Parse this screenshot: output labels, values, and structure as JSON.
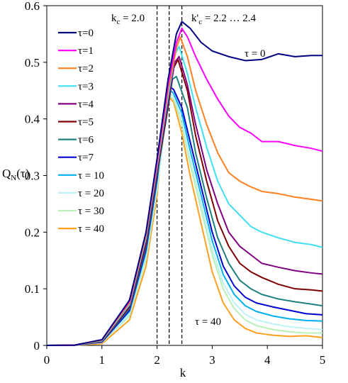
{
  "chart_data": {
    "type": "line",
    "xlabel": "k",
    "ylabel": "Q_N(τ)",
    "xlim": [
      0,
      5
    ],
    "ylim": [
      0,
      0.6
    ],
    "x_ticks": [
      "0",
      "1",
      "2",
      "3",
      "4",
      "5"
    ],
    "y_ticks": [
      "0",
      "0.1",
      "0.2",
      "0.3",
      "0.4",
      "0.5",
      "0.6"
    ],
    "grid": false,
    "legend_position": "upper-left",
    "vlines": [
      2.0,
      2.22,
      2.45
    ],
    "annotations": {
      "kc": "k",
      "kc_sub": "c",
      "kc_value": " = 2.0",
      "kcp": "k'",
      "kcp_sub": "c",
      "kcp_value": " = 2.2 … 2.4",
      "tau0": "τ = 0",
      "tau40": "τ = 40"
    },
    "series": [
      {
        "name": "τ=0",
        "color": "#000080",
        "points": [
          [
            0,
            0
          ],
          [
            0.5,
            0.0005
          ],
          [
            1.0,
            0.01
          ],
          [
            1.5,
            0.08
          ],
          [
            1.8,
            0.2
          ],
          [
            2.0,
            0.33
          ],
          [
            2.2,
            0.47
          ],
          [
            2.35,
            0.55
          ],
          [
            2.45,
            0.572
          ],
          [
            2.6,
            0.56
          ],
          [
            2.8,
            0.535
          ],
          [
            3.0,
            0.52
          ],
          [
            3.3,
            0.51
          ],
          [
            3.6,
            0.503
          ],
          [
            3.9,
            0.505
          ],
          [
            4.2,
            0.515
          ],
          [
            4.5,
            0.51
          ],
          [
            4.8,
            0.512
          ],
          [
            5.0,
            0.512
          ]
        ]
      },
      {
        "name": "τ=1",
        "color": "#FF00FF",
        "points": [
          [
            0,
            0
          ],
          [
            0.5,
            0.0005
          ],
          [
            1.0,
            0.01
          ],
          [
            1.5,
            0.078
          ],
          [
            1.8,
            0.2
          ],
          [
            2.0,
            0.325
          ],
          [
            2.2,
            0.46
          ],
          [
            2.35,
            0.535
          ],
          [
            2.45,
            0.56
          ],
          [
            2.55,
            0.545
          ],
          [
            2.7,
            0.51
          ],
          [
            2.9,
            0.47
          ],
          [
            3.1,
            0.435
          ],
          [
            3.3,
            0.405
          ],
          [
            3.5,
            0.385
          ],
          [
            3.7,
            0.375
          ],
          [
            3.9,
            0.36
          ],
          [
            4.2,
            0.36
          ],
          [
            4.5,
            0.353
          ],
          [
            4.8,
            0.348
          ],
          [
            5.0,
            0.343
          ]
        ]
      },
      {
        "name": "τ=2",
        "color": "#FF8020",
        "points": [
          [
            0,
            0
          ],
          [
            0.5,
            0.0005
          ],
          [
            1.0,
            0.009
          ],
          [
            1.5,
            0.075
          ],
          [
            1.8,
            0.195
          ],
          [
            2.0,
            0.32
          ],
          [
            2.2,
            0.45
          ],
          [
            2.35,
            0.525
          ],
          [
            2.42,
            0.545
          ],
          [
            2.55,
            0.51
          ],
          [
            2.7,
            0.45
          ],
          [
            2.9,
            0.39
          ],
          [
            3.1,
            0.34
          ],
          [
            3.3,
            0.305
          ],
          [
            3.5,
            0.29
          ],
          [
            3.7,
            0.28
          ],
          [
            3.9,
            0.272
          ],
          [
            4.2,
            0.268
          ],
          [
            4.5,
            0.262
          ],
          [
            4.8,
            0.258
          ],
          [
            5.0,
            0.255
          ]
        ]
      },
      {
        "name": "τ=3",
        "color": "#40E0F0",
        "points": [
          [
            0,
            0
          ],
          [
            0.5,
            0.0004
          ],
          [
            1.0,
            0.008
          ],
          [
            1.5,
            0.072
          ],
          [
            1.8,
            0.19
          ],
          [
            2.0,
            0.315
          ],
          [
            2.2,
            0.44
          ],
          [
            2.33,
            0.515
          ],
          [
            2.4,
            0.528
          ],
          [
            2.55,
            0.48
          ],
          [
            2.7,
            0.42
          ],
          [
            2.9,
            0.35
          ],
          [
            3.1,
            0.29
          ],
          [
            3.3,
            0.25
          ],
          [
            3.5,
            0.23
          ],
          [
            3.7,
            0.21
          ],
          [
            3.9,
            0.2
          ],
          [
            4.2,
            0.19
          ],
          [
            4.5,
            0.182
          ],
          [
            4.8,
            0.178
          ],
          [
            5.0,
            0.173
          ]
        ]
      },
      {
        "name": "τ=4",
        "color": "#800080",
        "points": [
          [
            0,
            0
          ],
          [
            0.5,
            0.0004
          ],
          [
            1.0,
            0.008
          ],
          [
            1.5,
            0.07
          ],
          [
            1.8,
            0.185
          ],
          [
            2.0,
            0.31
          ],
          [
            2.2,
            0.43
          ],
          [
            2.32,
            0.5
          ],
          [
            2.4,
            0.51
          ],
          [
            2.55,
            0.46
          ],
          [
            2.7,
            0.39
          ],
          [
            2.9,
            0.31
          ],
          [
            3.1,
            0.25
          ],
          [
            3.3,
            0.2
          ],
          [
            3.5,
            0.175
          ],
          [
            3.7,
            0.16
          ],
          [
            3.9,
            0.145
          ],
          [
            4.2,
            0.138
          ],
          [
            4.5,
            0.132
          ],
          [
            4.8,
            0.128
          ],
          [
            5.0,
            0.126
          ]
        ]
      },
      {
        "name": "τ=5",
        "color": "#800000",
        "points": [
          [
            0,
            0
          ],
          [
            0.5,
            0.0004
          ],
          [
            1.0,
            0.007
          ],
          [
            1.5,
            0.068
          ],
          [
            1.8,
            0.18
          ],
          [
            2.0,
            0.305
          ],
          [
            2.2,
            0.425
          ],
          [
            2.3,
            0.49
          ],
          [
            2.38,
            0.505
          ],
          [
            2.55,
            0.45
          ],
          [
            2.7,
            0.37
          ],
          [
            2.9,
            0.29
          ],
          [
            3.1,
            0.22
          ],
          [
            3.3,
            0.175
          ],
          [
            3.5,
            0.145
          ],
          [
            3.7,
            0.13
          ],
          [
            3.9,
            0.12
          ],
          [
            4.2,
            0.108
          ],
          [
            4.5,
            0.1
          ],
          [
            4.8,
            0.098
          ],
          [
            5.0,
            0.096
          ]
        ]
      },
      {
        "name": "τ=6",
        "color": "#1F8080",
        "points": [
          [
            0,
            0
          ],
          [
            0.5,
            0.0003
          ],
          [
            1.0,
            0.007
          ],
          [
            1.5,
            0.065
          ],
          [
            1.8,
            0.175
          ],
          [
            2.0,
            0.3
          ],
          [
            2.2,
            0.42
          ],
          [
            2.28,
            0.47
          ],
          [
            2.35,
            0.475
          ],
          [
            2.55,
            0.42
          ],
          [
            2.7,
            0.34
          ],
          [
            2.9,
            0.26
          ],
          [
            3.1,
            0.19
          ],
          [
            3.3,
            0.145
          ],
          [
            3.5,
            0.115
          ],
          [
            3.7,
            0.1
          ],
          [
            3.9,
            0.09
          ],
          [
            4.2,
            0.082
          ],
          [
            4.5,
            0.077
          ],
          [
            4.8,
            0.073
          ],
          [
            5.0,
            0.07
          ]
        ]
      },
      {
        "name": "τ=7",
        "color": "#0000D0",
        "points": [
          [
            0,
            0
          ],
          [
            0.5,
            0.0003
          ],
          [
            1.0,
            0.006
          ],
          [
            1.5,
            0.062
          ],
          [
            1.8,
            0.17
          ],
          [
            2.0,
            0.295
          ],
          [
            2.15,
            0.42
          ],
          [
            2.22,
            0.458
          ],
          [
            2.3,
            0.452
          ],
          [
            2.45,
            0.42
          ],
          [
            2.6,
            0.36
          ],
          [
            2.8,
            0.28
          ],
          [
            3.0,
            0.2
          ],
          [
            3.2,
            0.14
          ],
          [
            3.4,
            0.105
          ],
          [
            3.6,
            0.085
          ],
          [
            3.8,
            0.075
          ],
          [
            4.1,
            0.068
          ],
          [
            4.4,
            0.062
          ],
          [
            4.7,
            0.056
          ],
          [
            5.0,
            0.054
          ]
        ]
      },
      {
        "name": "τ = 10",
        "color": "#00B0F0",
        "points": [
          [
            0,
            0
          ],
          [
            0.5,
            0.0003
          ],
          [
            1.0,
            0.006
          ],
          [
            1.5,
            0.06
          ],
          [
            1.8,
            0.165
          ],
          [
            2.0,
            0.29
          ],
          [
            2.15,
            0.41
          ],
          [
            2.23,
            0.452
          ],
          [
            2.3,
            0.445
          ],
          [
            2.45,
            0.41
          ],
          [
            2.6,
            0.345
          ],
          [
            2.8,
            0.265
          ],
          [
            3.0,
            0.185
          ],
          [
            3.2,
            0.125
          ],
          [
            3.4,
            0.09
          ],
          [
            3.6,
            0.07
          ],
          [
            3.8,
            0.06
          ],
          [
            4.1,
            0.052
          ],
          [
            4.4,
            0.047
          ],
          [
            4.7,
            0.044
          ],
          [
            5.0,
            0.043
          ]
        ]
      },
      {
        "name": "τ = 20",
        "color": "#C0F0F8",
        "points": [
          [
            0,
            0
          ],
          [
            0.5,
            0.0002
          ],
          [
            1.0,
            0.005
          ],
          [
            1.5,
            0.055
          ],
          [
            1.8,
            0.158
          ],
          [
            2.0,
            0.28
          ],
          [
            2.15,
            0.4
          ],
          [
            2.22,
            0.445
          ],
          [
            2.3,
            0.44
          ],
          [
            2.45,
            0.4
          ],
          [
            2.6,
            0.33
          ],
          [
            2.8,
            0.25
          ],
          [
            3.0,
            0.17
          ],
          [
            3.2,
            0.11
          ],
          [
            3.4,
            0.075
          ],
          [
            3.6,
            0.055
          ],
          [
            3.8,
            0.045
          ],
          [
            4.1,
            0.038
          ],
          [
            4.4,
            0.033
          ],
          [
            4.7,
            0.03
          ],
          [
            5.0,
            0.028
          ]
        ]
      },
      {
        "name": "τ = 30",
        "color": "#B8F0B8",
        "points": [
          [
            0,
            0
          ],
          [
            0.5,
            0.0002
          ],
          [
            1.0,
            0.005
          ],
          [
            1.5,
            0.052
          ],
          [
            1.8,
            0.152
          ],
          [
            2.0,
            0.275
          ],
          [
            2.15,
            0.395
          ],
          [
            2.22,
            0.44
          ],
          [
            2.3,
            0.435
          ],
          [
            2.45,
            0.39
          ],
          [
            2.6,
            0.32
          ],
          [
            2.8,
            0.24
          ],
          [
            3.0,
            0.16
          ],
          [
            3.2,
            0.1
          ],
          [
            3.4,
            0.065
          ],
          [
            3.6,
            0.045
          ],
          [
            3.8,
            0.035
          ],
          [
            4.1,
            0.028
          ],
          [
            4.4,
            0.024
          ],
          [
            4.7,
            0.022
          ],
          [
            5.0,
            0.022
          ]
        ]
      },
      {
        "name": "τ = 40",
        "color": "#FFA020",
        "points": [
          [
            0,
            0
          ],
          [
            0.5,
            0.0001
          ],
          [
            1.0,
            0.003
          ],
          [
            1.5,
            0.045
          ],
          [
            1.8,
            0.14
          ],
          [
            2.0,
            0.265
          ],
          [
            2.12,
            0.39
          ],
          [
            2.2,
            0.44
          ],
          [
            2.3,
            0.43
          ],
          [
            2.45,
            0.375
          ],
          [
            2.6,
            0.3
          ],
          [
            2.8,
            0.215
          ],
          [
            3.0,
            0.13
          ],
          [
            3.2,
            0.075
          ],
          [
            3.4,
            0.045
          ],
          [
            3.6,
            0.03
          ],
          [
            3.8,
            0.022
          ],
          [
            4.1,
            0.018
          ],
          [
            4.4,
            0.016
          ],
          [
            4.7,
            0.017
          ],
          [
            5.0,
            0.014
          ]
        ]
      }
    ]
  }
}
